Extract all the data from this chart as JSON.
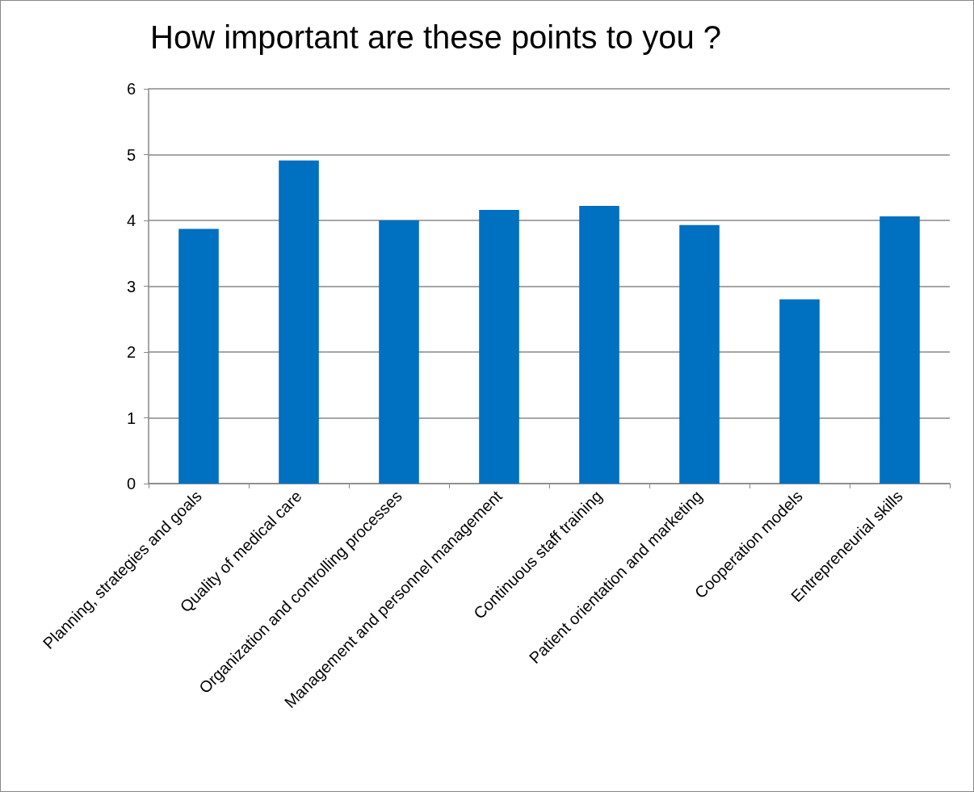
{
  "chart_data": {
    "type": "bar",
    "title": "How important are these points to you ?",
    "categories": [
      "Planning, strategies and goals",
      "Quality of medical care",
      "Organization and controlling processes",
      "Management and personnel management",
      "Continuous staff training",
      "Patient orientation and marketing",
      "Cooperation models",
      "Entrepreneurial skills"
    ],
    "values": [
      3.87,
      4.91,
      4.0,
      4.16,
      4.22,
      3.93,
      2.8,
      4.06
    ],
    "color": "#0070c0",
    "ylim": [
      0,
      6
    ],
    "yticks": [
      0,
      1,
      2,
      3,
      4,
      5,
      6
    ],
    "grid": "y"
  }
}
